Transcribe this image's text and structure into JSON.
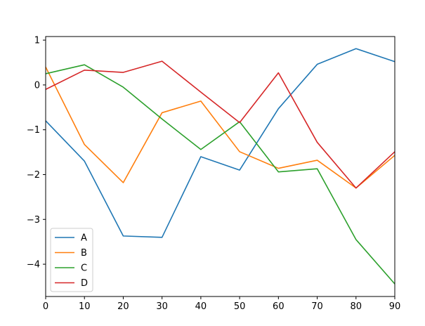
{
  "chart_data": {
    "type": "line",
    "x": [
      0,
      10,
      20,
      30,
      40,
      50,
      60,
      70,
      80,
      90
    ],
    "xlim": [
      0,
      90
    ],
    "ylim": [
      -4.72,
      1.08
    ],
    "xticks": [
      0,
      10,
      20,
      30,
      40,
      50,
      60,
      70,
      80,
      90
    ],
    "yticks": [
      1,
      0,
      -1,
      -2,
      -3,
      -4
    ],
    "grid": false,
    "legend_position": "lower-left",
    "series": [
      {
        "name": "A",
        "color": "#1f77b4",
        "values": [
          -0.8,
          -1.7,
          -3.37,
          -3.4,
          -1.6,
          -1.9,
          -0.53,
          0.46,
          0.81,
          0.52
        ]
      },
      {
        "name": "B",
        "color": "#ff7f0e",
        "values": [
          0.4,
          -1.33,
          -2.18,
          -0.62,
          -0.36,
          -1.49,
          -1.86,
          -1.68,
          -2.3,
          -1.57
        ]
      },
      {
        "name": "C",
        "color": "#2ca02c",
        "values": [
          0.25,
          0.45,
          -0.05,
          -0.76,
          -1.44,
          -0.82,
          -1.94,
          -1.87,
          -3.45,
          -4.44
        ]
      },
      {
        "name": "D",
        "color": "#d62728",
        "values": [
          -0.1,
          0.33,
          0.28,
          0.53,
          -0.16,
          -0.84,
          0.27,
          -1.28,
          -2.3,
          -1.49
        ]
      }
    ]
  }
}
